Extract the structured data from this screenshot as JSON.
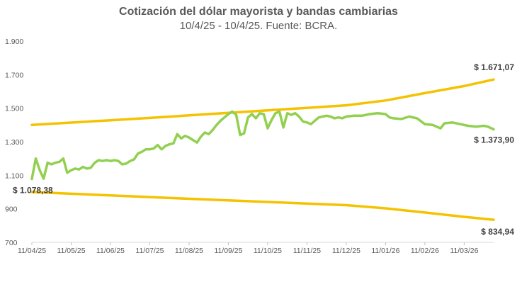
{
  "chart_data": {
    "type": "line",
    "title": "Cotización del dólar mayorista y bandas cambiarias",
    "subtitle": "10/4/25 - 10/4/25. Fuente: BCRA.",
    "xlabel": "",
    "ylabel": "",
    "ylim": [
      700,
      1900
    ],
    "yticks": [
      "700",
      "900",
      "1.100",
      "1.300",
      "1.500",
      "1.700",
      "1.900"
    ],
    "ytick_values": [
      700,
      900,
      1100,
      1300,
      1500,
      1700,
      1900
    ],
    "xticks": [
      "11/04/25",
      "11/05/25",
      "11/06/25",
      "11/07/25",
      "11/08/25",
      "11/09/25",
      "11/10/25",
      "11/11/25",
      "11/12/25",
      "11/01/26",
      "11/02/26",
      "11/03/26"
    ],
    "x_range_months": [
      0,
      11.75
    ],
    "grid": false,
    "legend": "none",
    "series": [
      {
        "color": "#F5C200",
        "points": [
          [
            0,
            1400
          ],
          [
            1,
            1414
          ],
          [
            2,
            1428
          ],
          [
            3,
            1442
          ],
          [
            4,
            1457
          ],
          [
            5,
            1472
          ],
          [
            6,
            1487
          ],
          [
            7,
            1502
          ],
          [
            8,
            1517
          ],
          [
            9,
            1546
          ],
          [
            10,
            1590
          ],
          [
            11,
            1632
          ],
          [
            11.75,
            1671.07
          ]
        ]
      },
      {
        "color": "#F5C200",
        "points": [
          [
            0,
            1000
          ],
          [
            1,
            990
          ],
          [
            2,
            980
          ],
          [
            3,
            970
          ],
          [
            4,
            960
          ],
          [
            5,
            950
          ],
          [
            6,
            941
          ],
          [
            7,
            931
          ],
          [
            8,
            922
          ],
          [
            9,
            903
          ],
          [
            10,
            878
          ],
          [
            11,
            852
          ],
          [
            11.75,
            834.94
          ]
        ]
      },
      {
        "color": "#92D050",
        "points": [
          [
            0,
            1078.38
          ],
          [
            0.1,
            1200
          ],
          [
            0.2,
            1130
          ],
          [
            0.3,
            1080
          ],
          [
            0.4,
            1175
          ],
          [
            0.5,
            1165
          ],
          [
            0.6,
            1175
          ],
          [
            0.7,
            1180
          ],
          [
            0.8,
            1200
          ],
          [
            0.9,
            1115
          ],
          [
            1.0,
            1130
          ],
          [
            1.1,
            1140
          ],
          [
            1.2,
            1135
          ],
          [
            1.3,
            1150
          ],
          [
            1.4,
            1140
          ],
          [
            1.5,
            1145
          ],
          [
            1.6,
            1175
          ],
          [
            1.7,
            1190
          ],
          [
            1.8,
            1185
          ],
          [
            1.9,
            1190
          ],
          [
            2.0,
            1185
          ],
          [
            2.1,
            1190
          ],
          [
            2.2,
            1185
          ],
          [
            2.3,
            1165
          ],
          [
            2.4,
            1170
          ],
          [
            2.5,
            1185
          ],
          [
            2.6,
            1195
          ],
          [
            2.7,
            1230
          ],
          [
            2.8,
            1240
          ],
          [
            2.9,
            1255
          ],
          [
            3.0,
            1255
          ],
          [
            3.1,
            1260
          ],
          [
            3.2,
            1280
          ],
          [
            3.3,
            1255
          ],
          [
            3.4,
            1275
          ],
          [
            3.5,
            1285
          ],
          [
            3.6,
            1290
          ],
          [
            3.7,
            1345
          ],
          [
            3.8,
            1320
          ],
          [
            3.9,
            1335
          ],
          [
            4.0,
            1325
          ],
          [
            4.1,
            1310
          ],
          [
            4.2,
            1295
          ],
          [
            4.3,
            1330
          ],
          [
            4.4,
            1355
          ],
          [
            4.5,
            1345
          ],
          [
            4.6,
            1370
          ],
          [
            4.7,
            1400
          ],
          [
            4.8,
            1425
          ],
          [
            4.9,
            1445
          ],
          [
            5.0,
            1465
          ],
          [
            5.1,
            1480
          ],
          [
            5.2,
            1460
          ],
          [
            5.3,
            1340
          ],
          [
            5.4,
            1350
          ],
          [
            5.5,
            1445
          ],
          [
            5.6,
            1465
          ],
          [
            5.7,
            1440
          ],
          [
            5.8,
            1470
          ],
          [
            5.9,
            1465
          ],
          [
            6.0,
            1380
          ],
          [
            6.1,
            1430
          ],
          [
            6.2,
            1470
          ],
          [
            6.3,
            1480
          ],
          [
            6.4,
            1385
          ],
          [
            6.5,
            1470
          ],
          [
            6.6,
            1460
          ],
          [
            6.7,
            1470
          ],
          [
            6.8,
            1450
          ],
          [
            6.9,
            1420
          ],
          [
            7.0,
            1415
          ],
          [
            7.1,
            1405
          ],
          [
            7.2,
            1425
          ],
          [
            7.3,
            1445
          ],
          [
            7.4,
            1450
          ],
          [
            7.5,
            1455
          ],
          [
            7.6,
            1450
          ],
          [
            7.7,
            1440
          ],
          [
            7.8,
            1445
          ],
          [
            7.9,
            1440
          ],
          [
            8.0,
            1450
          ],
          [
            8.2,
            1455
          ],
          [
            8.4,
            1455
          ],
          [
            8.6,
            1465
          ],
          [
            8.8,
            1470
          ],
          [
            9.0,
            1465
          ],
          [
            9.1,
            1445
          ],
          [
            9.2,
            1440
          ],
          [
            9.4,
            1435
          ],
          [
            9.6,
            1450
          ],
          [
            9.8,
            1440
          ],
          [
            10.0,
            1405
          ],
          [
            10.2,
            1400
          ],
          [
            10.4,
            1380
          ],
          [
            10.5,
            1410
          ],
          [
            10.7,
            1415
          ],
          [
            10.9,
            1405
          ],
          [
            11.1,
            1395
          ],
          [
            11.3,
            1390
          ],
          [
            11.5,
            1395
          ],
          [
            11.6,
            1390
          ],
          [
            11.75,
            1373.9
          ]
        ]
      }
    ],
    "annotations": [
      {
        "text": "$ 1.671,07",
        "x": 11.75,
        "y": 1671.07,
        "anchor": "end",
        "dy": -13
      },
      {
        "text": "$ 1.373,90",
        "x": 11.75,
        "y": 1373.9,
        "anchor": "end",
        "dy": 19
      },
      {
        "text": "$ 1.078,38",
        "x": 0,
        "y": 1078.38,
        "anchor": "start",
        "dy": 20
      },
      {
        "text": "$ 834,94",
        "x": 11.75,
        "y": 834.94,
        "anchor": "end",
        "dy": 21
      }
    ]
  }
}
